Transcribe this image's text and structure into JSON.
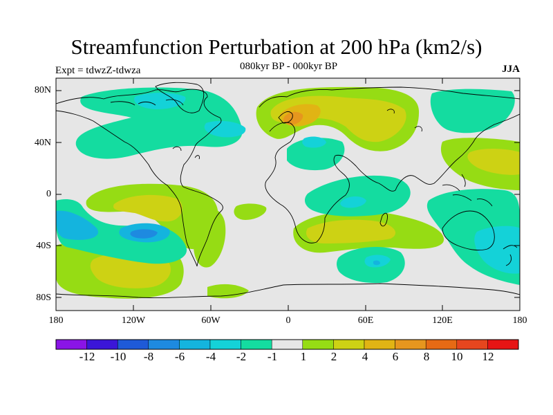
{
  "title": "Streamfunction Perturbation at 200 hPa (km2/s)",
  "subtitle": "080kyr BP - 000kyr BP",
  "experiment": "Expt = tdwzZ-tdwza",
  "season": "JJA",
  "y_axis_labels": [
    "80N",
    "40N",
    "0",
    "40S",
    "80S"
  ],
  "x_axis_labels": [
    "180",
    "120W",
    "60W",
    "0",
    "60E",
    "120E",
    "180"
  ],
  "colorbar": {
    "labels": [
      "-12",
      "-10",
      "-8",
      "-6",
      "-4",
      "-2",
      "-1",
      "1",
      "2",
      "4",
      "6",
      "8",
      "10",
      "12"
    ],
    "colors": [
      "#8a14e6",
      "#3b16d8",
      "#1e5ad8",
      "#1e8ae0",
      "#14b4de",
      "#14d2d8",
      "#14dca0",
      "#e6e6e6",
      "#96dc14",
      "#cdd214",
      "#e1b414",
      "#e6961e",
      "#e66a14",
      "#e6461e",
      "#e61414"
    ]
  },
  "legend_colors": {
    "neg2": "#14dca0",
    "neg4": "#14d2d8",
    "neg6": "#14b4de",
    "pos1": "#96dc14",
    "pos2": "#cdd214",
    "pos4": "#e1b414",
    "pos6": "#e6961e",
    "neutral": "#e6e6e6",
    "coast": "#000000"
  }
}
